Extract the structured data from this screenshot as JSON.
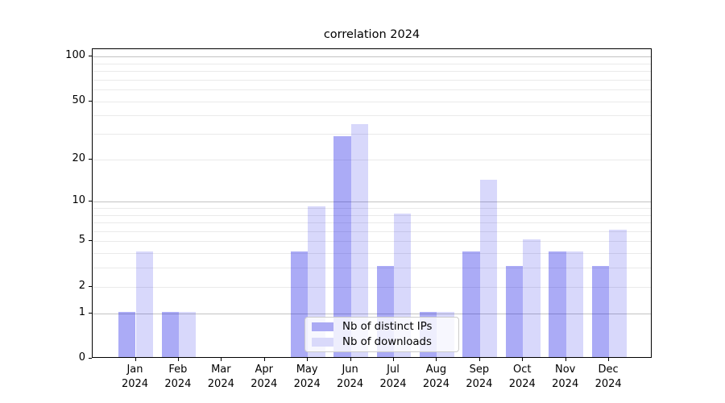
{
  "chart_data": {
    "type": "bar",
    "title": "correlation 2024",
    "categories": [
      "Jan\n2024",
      "Feb\n2024",
      "Mar\n2024",
      "Apr\n2024",
      "May\n2024",
      "Jun\n2024",
      "Jul\n2024",
      "Aug\n2024",
      "Sep\n2024",
      "Oct\n2024",
      "Nov\n2024",
      "Dec\n2024"
    ],
    "series": [
      {
        "name": "Nb of distinct IPs",
        "color": "rgba(15,15,230,0.35)",
        "legend_color": "#abaaf4",
        "values": [
          1,
          1,
          0,
          0,
          4,
          28,
          3,
          1,
          4,
          3,
          4,
          3
        ]
      },
      {
        "name": "Nb of downloads",
        "color": "rgba(15,15,230,0.16)",
        "legend_color": "#d9d9fa",
        "values": [
          4,
          1,
          0,
          0,
          9,
          34,
          8,
          1,
          14,
          5,
          4,
          6
        ]
      }
    ],
    "xlabel": "",
    "ylabel": "",
    "yscale": "log1p",
    "ylim": [
      0,
      112
    ],
    "yticks_labeled": [
      0,
      1,
      2,
      5,
      10,
      20,
      50,
      100
    ],
    "grid_major": [
      1,
      10,
      100
    ],
    "grid_minor": [
      2,
      3,
      4,
      5,
      6,
      7,
      8,
      9,
      20,
      30,
      40,
      50,
      60,
      70,
      80,
      90
    ],
    "grid": "on",
    "legend_position": "lower center"
  }
}
